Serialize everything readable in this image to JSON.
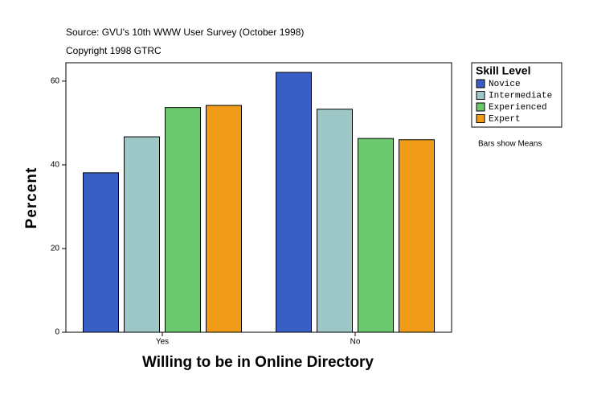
{
  "chart_data": {
    "type": "bar",
    "subtitle": "Source: GVU's 10th WWW User Survey (October 1998)",
    "copyright": "Copyright 1998 GTRC",
    "xlabel": "Willing to be in Online Directory",
    "ylabel": "Percent",
    "legend_title": "Skill Level",
    "note": "Bars show Means",
    "categories": [
      "Yes",
      "No"
    ],
    "series": [
      {
        "name": "Novice",
        "color": "#3a5fc4",
        "values": [
          38.1,
          62.1
        ]
      },
      {
        "name": "Intermediate",
        "color": "#9ec8c8",
        "values": [
          46.7,
          53.3
        ]
      },
      {
        "name": "Experienced",
        "color": "#6cc86c",
        "values": [
          53.7,
          46.3
        ]
      },
      {
        "name": "Expert",
        "color": "#f09c18",
        "values": [
          54.2,
          46.0
        ]
      }
    ],
    "ylim": [
      0,
      64.4
    ],
    "yticks": [
      0,
      20,
      40,
      60
    ],
    "legend": "right"
  }
}
